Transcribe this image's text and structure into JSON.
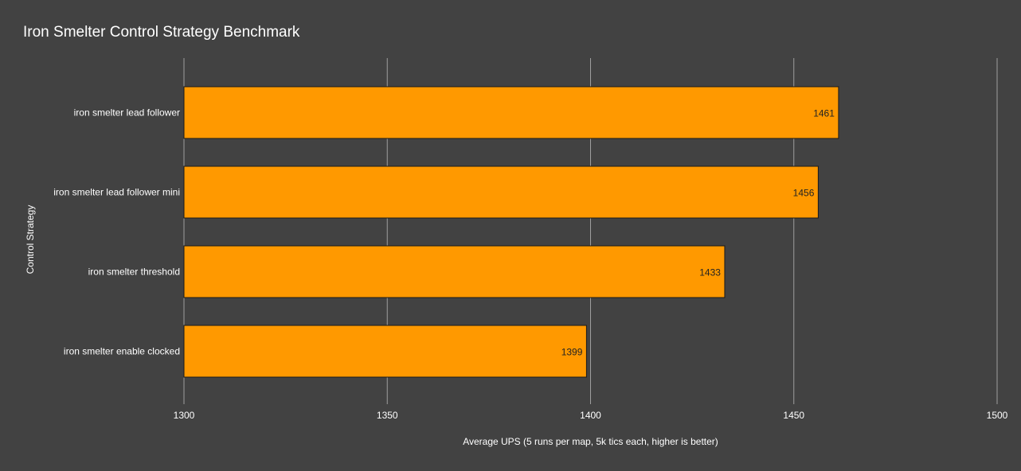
{
  "colors": {
    "background": "#424242",
    "bar_fill": "#ff9900",
    "bar_stroke": "#1a1a1a",
    "grid": "#9e9e9e",
    "text": "#ffffff",
    "data_label": "#222222"
  },
  "chart_data": {
    "type": "bar",
    "orientation": "horizontal",
    "title": "Iron Smelter Control Strategy Benchmark",
    "xlabel": "Average UPS (5 runs per map, 5k tics each, higher is better)",
    "ylabel": "Control Strategy",
    "categories": [
      "iron smelter lead follower",
      "iron smelter lead follower mini",
      "iron smelter threshold",
      "iron smelter enable clocked"
    ],
    "values": [
      1461,
      1456,
      1433,
      1399
    ],
    "data_labels": [
      "1461",
      "1456",
      "1433",
      "1399"
    ],
    "xlim": [
      1300,
      1500
    ],
    "xticks": [
      1300,
      1350,
      1400,
      1450,
      1500
    ],
    "xtick_labels": [
      "1300",
      "1350",
      "1400",
      "1450",
      "1500"
    ],
    "grid": true,
    "legend": "none"
  }
}
